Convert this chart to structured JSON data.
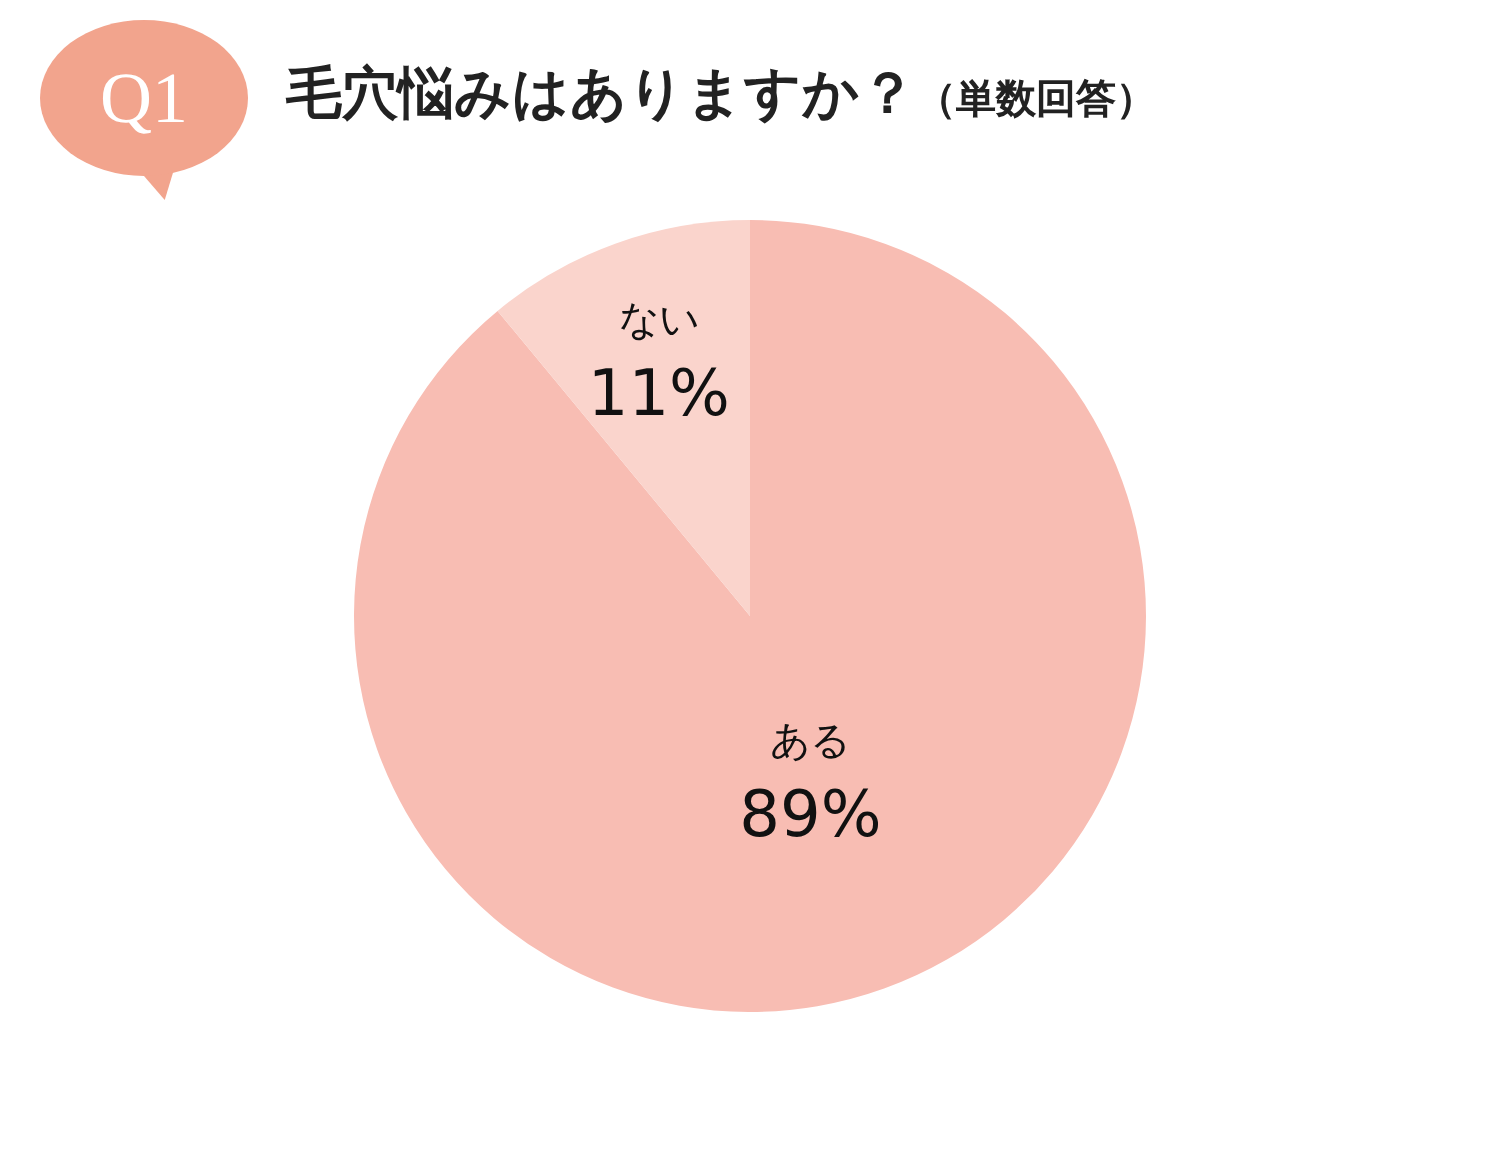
{
  "chart_data": {
    "type": "pie",
    "title": "毛穴悩みはありますか？",
    "subtitle": "（単数回答）",
    "annotations": [
      "Q1"
    ],
    "categories": [
      "ある",
      "ない"
    ],
    "values": [
      89,
      11
    ],
    "colors": [
      "#f8bdb3",
      "#fad4cc"
    ],
    "value_labels": [
      "89%",
      "11%"
    ],
    "legend": false
  }
}
